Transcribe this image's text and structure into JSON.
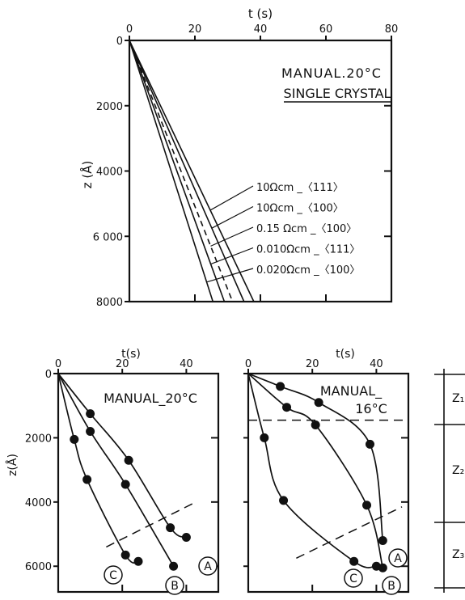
{
  "chart_data": [
    {
      "type": "line",
      "title": "MANUAL.20°C",
      "subtitle": "SINGLE CRYSTAL",
      "xlabel": "t (s)",
      "ylabel": "z (Å)",
      "xlim": [
        0,
        80
      ],
      "ylim": [
        8000,
        0
      ],
      "x_ticks": [
        "0",
        "20",
        "40",
        "60",
        "80"
      ],
      "y_ticks": [
        "0",
        "2000",
        "4000",
        "6 000",
        "8000"
      ],
      "series": [
        {
          "name": "10Ωcm _〈111〉",
          "x": [
            0,
            38
          ],
          "y": [
            0,
            8000
          ],
          "dashed": false
        },
        {
          "name": "10Ωcm _〈100〉",
          "x": [
            0,
            35
          ],
          "y": [
            0,
            8000
          ],
          "dashed": false
        },
        {
          "name": "0.15 Ωcm _〈100〉",
          "x": [
            0,
            31.5
          ],
          "y": [
            0,
            8000
          ],
          "dashed": true
        },
        {
          "name": "0.010Ωcm _〈111〉",
          "x": [
            0,
            29
          ],
          "y": [
            0,
            8000
          ],
          "dashed": false
        },
        {
          "name": "0.020Ωcm _〈100〉",
          "x": [
            0,
            25.5
          ],
          "y": [
            0,
            8000
          ],
          "dashed": false
        }
      ]
    },
    {
      "type": "line",
      "title": "MANUAL_20°C",
      "xlabel": "t(s)",
      "ylabel": "z(Å)",
      "xlim": [
        0,
        50
      ],
      "ylim": [
        6800,
        0
      ],
      "x_ticks": [
        "0",
        "20",
        "40"
      ],
      "y_ticks": [
        "0",
        "2000",
        "4000",
        "6000"
      ],
      "series": [
        {
          "name": "A",
          "points": [
            [
              0,
              0
            ],
            [
              10,
              1250
            ],
            [
              22,
              2700
            ],
            [
              35,
              4800
            ],
            [
              40,
              5100
            ]
          ]
        },
        {
          "name": "B",
          "points": [
            [
              0,
              0
            ],
            [
              10,
              1800
            ],
            [
              21,
              3450
            ],
            [
              36,
              6000
            ]
          ]
        },
        {
          "name": "C",
          "points": [
            [
              0,
              0
            ],
            [
              5,
              2050
            ],
            [
              9,
              3300
            ],
            [
              21,
              5650
            ],
            [
              25,
              5850
            ]
          ]
        }
      ],
      "dashed_line": [
        [
          15,
          5400
        ],
        [
          42,
          4050
        ]
      ]
    },
    {
      "type": "line",
      "title": "MANUAL_",
      "subtitle": "16°C",
      "xlabel": "t(s)",
      "xlim": [
        0,
        50
      ],
      "ylim": [
        6800,
        0
      ],
      "x_ticks": [
        "0",
        "20",
        "40"
      ],
      "series": [
        {
          "name": "A",
          "points": [
            [
              0,
              0
            ],
            [
              10,
              400
            ],
            [
              22,
              900
            ],
            [
              38,
              2200
            ],
            [
              42,
              5200
            ]
          ]
        },
        {
          "name": "B",
          "points": [
            [
              0,
              0
            ],
            [
              12,
              1050
            ],
            [
              21,
              1600
            ],
            [
              37,
              4100
            ],
            [
              42,
              6050
            ]
          ]
        },
        {
          "name": "C",
          "points": [
            [
              0,
              0
            ],
            [
              5,
              2000
            ],
            [
              11,
              3950
            ],
            [
              33,
              5850
            ],
            [
              40,
              6000
            ]
          ]
        }
      ],
      "dashed_lines": [
        {
          "points": [
            [
              0,
              1450
            ],
            [
              50,
              1450
            ]
          ]
        },
        {
          "points": [
            [
              15,
              5750
            ],
            [
              48,
              4150
            ]
          ]
        }
      ]
    }
  ],
  "zones": {
    "labels": [
      "Z₁",
      "Z₂",
      "Z₃"
    ]
  }
}
